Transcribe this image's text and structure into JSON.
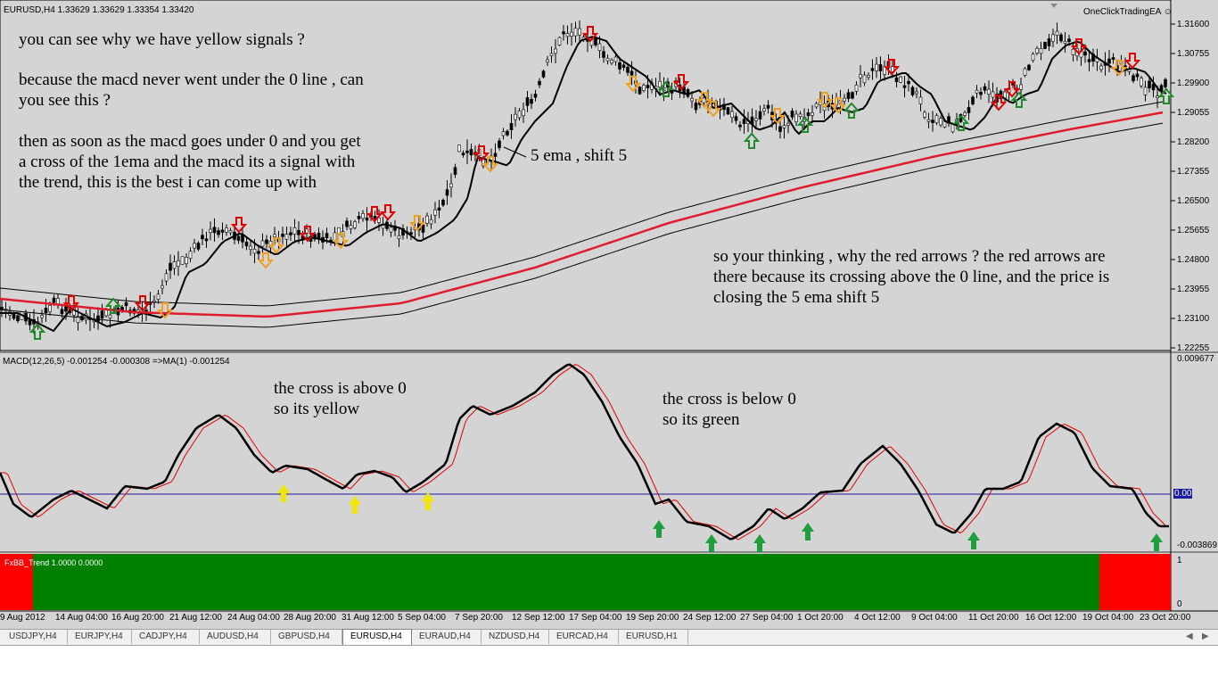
{
  "window": {
    "title": "EURUSD,H4  1.33629 1.33629 1.33354 1.33420",
    "brand": "OneClickTradingEA"
  },
  "price_axis": [
    "1.31600",
    "1.30755",
    "1.29900",
    "1.29055",
    "1.28200",
    "1.27355",
    "1.26500",
    "1.25655",
    "1.24800",
    "1.23955",
    "1.23100",
    "1.22255"
  ],
  "macd": {
    "header": "MACD(12,26,5) -0.001254 -0.000308 =>MA(1) -0.001254",
    "axis": {
      "top": "0.009677",
      "zero": "0.00",
      "bottom": "-0.003869"
    }
  },
  "trend": {
    "header": "FxBB_Trend 1.0000 0.0000",
    "axis": {
      "top": "1",
      "bottom": "0"
    }
  },
  "dates": [
    "9 Aug 2012",
    "14 Aug 04:00",
    "16 Aug 20:00",
    "21 Aug 12:00",
    "24 Aug 04:00",
    "28 Aug 20:00",
    "31 Aug 12:00",
    "5 Sep 04:00",
    "7 Sep 20:00",
    "12 Sep 12:00",
    "17 Sep 04:00",
    "19 Sep 20:00",
    "24 Sep 12:00",
    "27 Sep 04:00",
    "1 Oct 20:00",
    "4 Oct 12:00",
    "9 Oct 04:00",
    "11 Oct 20:00",
    "16 Oct 12:00",
    "19 Oct 04:00",
    "23 Oct 20:00"
  ],
  "notes": {
    "yellow_signals": "you can see why we have yellow signals ?",
    "macd_zero": "because the macd never went under the 0 line , can\nyou see this ?",
    "cross_signal": "then as soon as the macd goes under 0 and you get\na cross of the 1ema and the macd its a signal with\nthe trend, this is the best i can come up with",
    "ema_label": "5 ema , shift 5",
    "red_arrows": "so your thinking , why the red arrows ? the red arrows are\nthere because its crossing above the 0 line, and the price is\nclosing the 5 ema shift 5",
    "cross_above": "the cross is above 0\nso its yellow",
    "cross_below": "the cross is below 0\nso its green"
  },
  "tabs": [
    {
      "label": "USDJPY,H4",
      "active": false
    },
    {
      "label": "EURJPY,H4",
      "active": false
    },
    {
      "label": "CADJPY,H4",
      "active": false
    },
    {
      "label": "AUDUSD,H4",
      "active": false
    },
    {
      "label": "GBPUSD,H4",
      "active": false
    },
    {
      "label": "EURUSD,H4",
      "active": true
    },
    {
      "label": "EURAUD,H4",
      "active": false
    },
    {
      "label": "NZDUSD,H4",
      "active": false
    },
    {
      "label": "EURCAD,H4",
      "active": false
    },
    {
      "label": "EURUSD,H1",
      "active": false
    }
  ],
  "colors": {
    "background": "#d4d4d4",
    "ema": "#000000",
    "ma_red": "#e01c2c",
    "macd_signal": "#e00000",
    "zero_line": "#1a1aa0",
    "trend_green": "#008000",
    "trend_red": "#ff0000",
    "arrow_yellow": "#f2e600",
    "arrow_green": "#1e9e3c"
  }
}
